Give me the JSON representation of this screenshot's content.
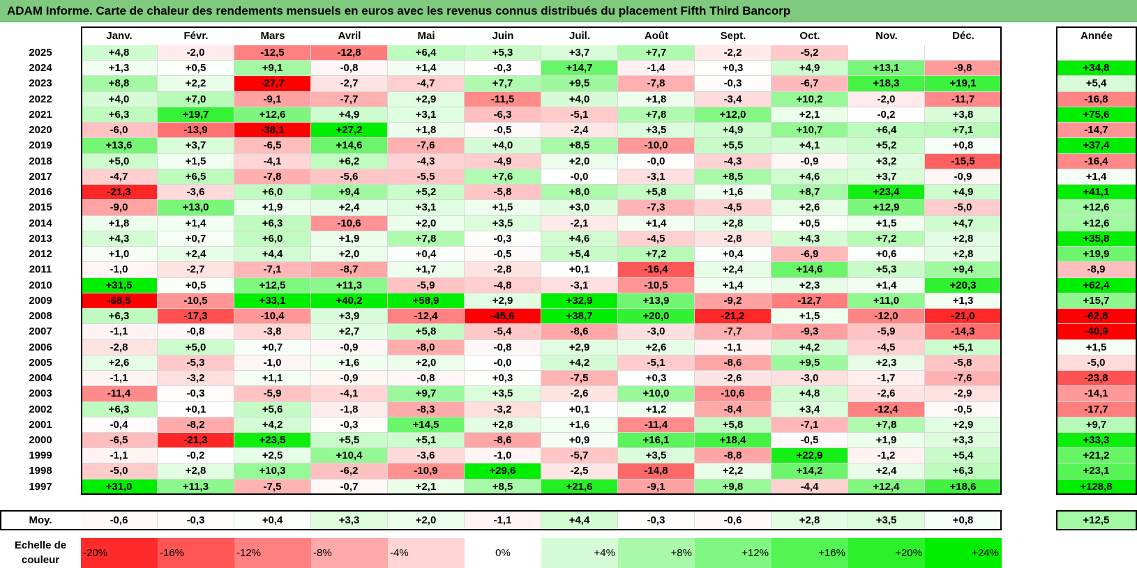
{
  "title": "ADAM Informe. Carte de chaleur des rendements mensuels en euros avec les revenus connus distribués du placement Fifth Third Bancorp",
  "colors": {
    "title_bg": "#7fca7f",
    "negative": "#ff0000",
    "neutral": "#ffffff",
    "positive": "#00ee00"
  },
  "chart_data": {
    "type": "heatmap",
    "months": [
      "Janv.",
      "Févr.",
      "Mars",
      "Avril",
      "Mai",
      "Juin",
      "Juil.",
      "Août",
      "Sept.",
      "Oct.",
      "Nov.",
      "Déc."
    ],
    "year_header": "Année",
    "avg_label": "Moy.",
    "rows": [
      {
        "year": "2025",
        "values": [
          "+4,8",
          "-2,0",
          "-12,5",
          "-12,8",
          "+6,4",
          "+5,3",
          "+3,7",
          "+7,7",
          "-2,2",
          "-5,2",
          "",
          ""
        ],
        "annual": ""
      },
      {
        "year": "2024",
        "values": [
          "+1,3",
          "+0,5",
          "+9,1",
          "-0,8",
          "+1,4",
          "-0,3",
          "+14,7",
          "-1,4",
          "+0,3",
          "+4,9",
          "+13,1",
          "-9,8"
        ],
        "annual": "+34,8"
      },
      {
        "year": "2023",
        "values": [
          "+8,8",
          "+2,2",
          "-27,7",
          "-2,7",
          "-4,7",
          "+7,7",
          "+9,5",
          "-7,8",
          "-0,3",
          "-6,7",
          "+18,3",
          "+19,1"
        ],
        "annual": "+5,4"
      },
      {
        "year": "2022",
        "values": [
          "+4,0",
          "+7,0",
          "-9,1",
          "-7,7",
          "+2,9",
          "-11,5",
          "+4,0",
          "+1,8",
          "-3,4",
          "+10,2",
          "-2,0",
          "-11,7"
        ],
        "annual": "-16,8"
      },
      {
        "year": "2021",
        "values": [
          "+6,3",
          "+19,7",
          "+12,6",
          "+4,9",
          "+3,1",
          "-6,3",
          "-5,1",
          "+7,8",
          "+12,0",
          "+2,1",
          "-0,2",
          "+3,8"
        ],
        "annual": "+75,6"
      },
      {
        "year": "2020",
        "values": [
          "-6,0",
          "-13,9",
          "-38,1",
          "+27,2",
          "+1,8",
          "-0,5",
          "-2,4",
          "+3,5",
          "+4,9",
          "+10,7",
          "+6,4",
          "+7,1"
        ],
        "annual": "-14,7"
      },
      {
        "year": "2019",
        "values": [
          "+13,6",
          "+3,7",
          "-6,5",
          "+14,6",
          "-7,6",
          "+4,0",
          "+8,5",
          "-10,0",
          "+5,5",
          "+4,1",
          "+5,2",
          "+0,8"
        ],
        "annual": "+37,4"
      },
      {
        "year": "2018",
        "values": [
          "+5,0",
          "+1,5",
          "-4,1",
          "+6,2",
          "-4,3",
          "-4,9",
          "+2,0",
          "-0,0",
          "-4,3",
          "-0,9",
          "+3,2",
          "-15,5"
        ],
        "annual": "-16,4"
      },
      {
        "year": "2017",
        "values": [
          "-4,7",
          "+6,5",
          "-7,8",
          "-5,6",
          "-5,5",
          "+7,6",
          "-0,0",
          "-3,1",
          "+8,5",
          "+4,6",
          "+3,7",
          "-0,9"
        ],
        "annual": "+1,4"
      },
      {
        "year": "2016",
        "values": [
          "-21,3",
          "-3,6",
          "+6,0",
          "+9,4",
          "+5,2",
          "-5,8",
          "+8,0",
          "+5,8",
          "+1,6",
          "+8,7",
          "+23,4",
          "+4,9"
        ],
        "annual": "+41,1"
      },
      {
        "year": "2015",
        "values": [
          "-9,0",
          "+13,0",
          "+1,9",
          "+2,4",
          "+3,1",
          "+1,5",
          "+3,0",
          "-7,3",
          "-4,5",
          "+2,6",
          "+12,9",
          "-5,0"
        ],
        "annual": "+12,6"
      },
      {
        "year": "2014",
        "values": [
          "+1,8",
          "+1,4",
          "+6,3",
          "-10,6",
          "+2,0",
          "+3,5",
          "-2,1",
          "+1,4",
          "+2,8",
          "+0,5",
          "+1,5",
          "+4,7"
        ],
        "annual": "+12,6"
      },
      {
        "year": "2013",
        "values": [
          "+4,3",
          "+0,7",
          "+6,0",
          "+1,9",
          "+7,8",
          "-0,3",
          "+4,6",
          "-4,5",
          "-2,8",
          "+4,3",
          "+7,2",
          "+2,8"
        ],
        "annual": "+35,8"
      },
      {
        "year": "2012",
        "values": [
          "+1,0",
          "+2,4",
          "+4,4",
          "+2,0",
          "+0,4",
          "-0,5",
          "+5,4",
          "+7,2",
          "+0,4",
          "-6,9",
          "+0,6",
          "+2,8"
        ],
        "annual": "+19,9"
      },
      {
        "year": "2011",
        "values": [
          "-1,0",
          "-2,7",
          "-7,1",
          "-8,7",
          "+1,7",
          "-2,8",
          "+0,1",
          "-16,4",
          "+2,4",
          "+14,6",
          "+5,3",
          "+9,4"
        ],
        "annual": "-8,9"
      },
      {
        "year": "2010",
        "values": [
          "+31,5",
          "+0,5",
          "+12,5",
          "+11,3",
          "-5,9",
          "-4,8",
          "-3,1",
          "-10,5",
          "+1,4",
          "+2,3",
          "+1,4",
          "+20,3"
        ],
        "annual": "+62,4"
      },
      {
        "year": "2009",
        "values": [
          "-68,5",
          "-10,5",
          "+33,1",
          "+40,2",
          "+58,9",
          "+2,9",
          "+32,9",
          "+13,9",
          "-9,2",
          "-12,7",
          "+11,0",
          "+1,3"
        ],
        "annual": "+15,7"
      },
      {
        "year": "2008",
        "values": [
          "+6,3",
          "-17,3",
          "-10,4",
          "+3,9",
          "-12,4",
          "-45,6",
          "+38,7",
          "+20,0",
          "-21,2",
          "+1,5",
          "-12,0",
          "-21,0"
        ],
        "annual": "-62,8"
      },
      {
        "year": "2007",
        "values": [
          "-1,1",
          "-0,8",
          "-3,8",
          "+2,7",
          "+5,8",
          "-5,4",
          "-8,6",
          "-3,0",
          "-7,7",
          "-9,3",
          "-5,9",
          "-14,3"
        ],
        "annual": "-40,9"
      },
      {
        "year": "2006",
        "values": [
          "-2,8",
          "+5,0",
          "+0,7",
          "-0,9",
          "-8,0",
          "-0,8",
          "+2,9",
          "+2,6",
          "-1,1",
          "+4,2",
          "-4,5",
          "+5,1"
        ],
        "annual": "+1,5"
      },
      {
        "year": "2005",
        "values": [
          "+2,6",
          "-5,3",
          "-1,0",
          "+1,6",
          "+2,0",
          "-0,0",
          "+4,2",
          "-5,1",
          "-8,6",
          "+9,5",
          "+2,3",
          "-5,8"
        ],
        "annual": "-5,0"
      },
      {
        "year": "2004",
        "values": [
          "-1,1",
          "-3,2",
          "+1,1",
          "-0,9",
          "-0,8",
          "+0,3",
          "-7,5",
          "+0,3",
          "-2,6",
          "-3,0",
          "-1,7",
          "-7,6"
        ],
        "annual": "-23,8"
      },
      {
        "year": "2003",
        "values": [
          "-11,4",
          "-0,3",
          "-5,9",
          "-4,1",
          "+9,7",
          "+3,5",
          "-2,6",
          "+10,0",
          "-10,6",
          "+4,8",
          "-2,6",
          "-2,9"
        ],
        "annual": "-14,1"
      },
      {
        "year": "2002",
        "values": [
          "+6,3",
          "+0,1",
          "+5,6",
          "-1,8",
          "-8,3",
          "-3,2",
          "+0,1",
          "+1,2",
          "-8,4",
          "+3,4",
          "-12,4",
          "-0,5"
        ],
        "annual": "-17,7"
      },
      {
        "year": "2001",
        "values": [
          "-0,4",
          "-8,2",
          "+4,2",
          "-0,3",
          "+14,5",
          "+2,8",
          "+1,6",
          "-11,4",
          "+5,8",
          "-7,1",
          "+7,8",
          "+2,9"
        ],
        "annual": "+9,7"
      },
      {
        "year": "2000",
        "values": [
          "-6,5",
          "-21,3",
          "+23,5",
          "+5,5",
          "+5,1",
          "-8,6",
          "+0,9",
          "+16,1",
          "+18,4",
          "-0,5",
          "+1,9",
          "+3,3"
        ],
        "annual": "+33,3"
      },
      {
        "year": "1999",
        "values": [
          "-1,1",
          "-0,2",
          "+2,5",
          "+10,4",
          "-3,6",
          "-1,0",
          "-5,7",
          "+3,5",
          "-8,8",
          "+22,9",
          "-1,2",
          "+5,4"
        ],
        "annual": "+21,2"
      },
      {
        "year": "1998",
        "values": [
          "-5,0",
          "+2,8",
          "+10,3",
          "-6,2",
          "-10,9",
          "+29,6",
          "-2,5",
          "-14,8",
          "+2,2",
          "+14,2",
          "+2,4",
          "+6,3"
        ],
        "annual": "+23,1"
      },
      {
        "year": "1997",
        "values": [
          "+31,0",
          "+11,3",
          "-7,5",
          "-0,7",
          "+2,1",
          "+8,5",
          "+21,6",
          "-9,1",
          "+9,8",
          "-4,4",
          "+12,4",
          "+18,6"
        ],
        "annual": "+128,8"
      }
    ],
    "averages": [
      "-0,6",
      "-0,3",
      "+0,4",
      "+3,3",
      "+2,0",
      "-1,1",
      "+4,4",
      "-0,3",
      "-0,6",
      "+2,8",
      "+3,5",
      "+0,8"
    ],
    "annual_average": "+12,5",
    "color_scale": {
      "label": "Echelle de couleur",
      "steps": [
        {
          "label": "-20%",
          "value": -20
        },
        {
          "label": "-16%",
          "value": -16
        },
        {
          "label": "-12%",
          "value": -12
        },
        {
          "label": "-8%",
          "value": -8
        },
        {
          "label": "-4%",
          "value": -4
        },
        {
          "label": "0%",
          "value": 0
        },
        {
          "label": "+4%",
          "value": 4
        },
        {
          "label": "+8%",
          "value": 8
        },
        {
          "label": "+12%",
          "value": 12
        },
        {
          "label": "+16%",
          "value": 16
        },
        {
          "label": "+20%",
          "value": 20
        },
        {
          "label": "+24%",
          "value": 24
        }
      ]
    }
  }
}
